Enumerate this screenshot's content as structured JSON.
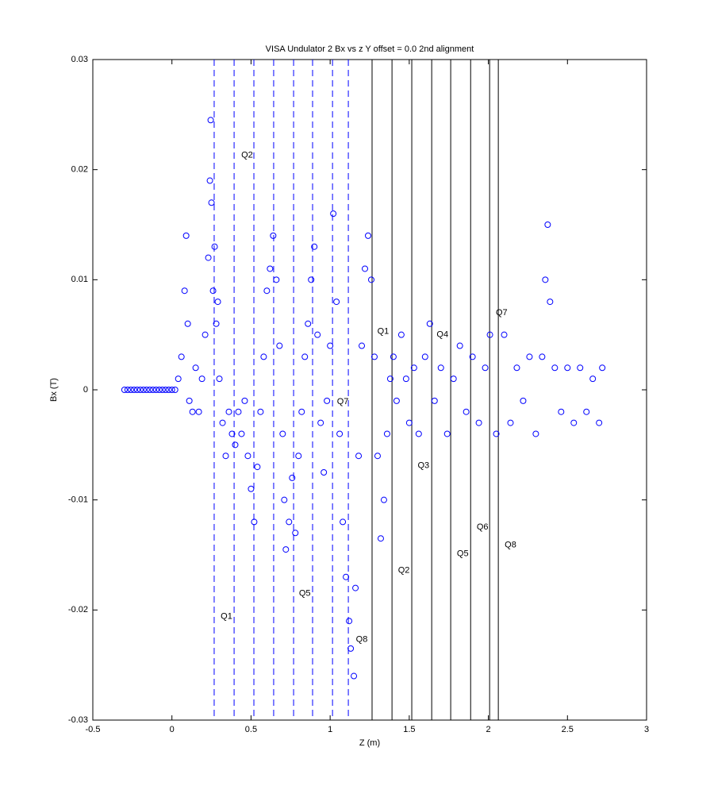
{
  "chart_data": {
    "type": "scatter",
    "title": "VISA Undulator 2 Bx vs z Y offset = 0.0 2nd alignment",
    "x_label": "Z (m)",
    "y_label": "Bx (T)",
    "xlim": [
      -0.5,
      3
    ],
    "ylim": [
      -0.03,
      0.03
    ],
    "xticks": [
      -0.5,
      0,
      0.5,
      1,
      1.5,
      2,
      2.5,
      3
    ],
    "yticks": [
      -0.03,
      -0.02,
      -0.01,
      0,
      0.01,
      0.02,
      0.03
    ],
    "color": "#0000ff",
    "marker": "open-circle",
    "x": [
      -0.3,
      -0.28,
      -0.26,
      -0.24,
      -0.22,
      -0.2,
      -0.18,
      -0.16,
      -0.14,
      -0.12,
      -0.1,
      -0.08,
      -0.06,
      -0.04,
      -0.02,
      0,
      0.02,
      0.04,
      0.06,
      0.08,
      0.09,
      0.1,
      0.11,
      0.13,
      0.15,
      0.17,
      0.19,
      0.21,
      0.23,
      0.24,
      0.245,
      0.25,
      0.26,
      0.27,
      0.28,
      0.29,
      0.3,
      0.32,
      0.34,
      0.36,
      0.38,
      0.4,
      0.42,
      0.44,
      0.46,
      0.48,
      0.5,
      0.52,
      0.54,
      0.56,
      0.58,
      0.6,
      0.62,
      0.64,
      0.66,
      0.68,
      0.7,
      0.71,
      0.72,
      0.74,
      0.76,
      0.78,
      0.8,
      0.82,
      0.84,
      0.86,
      0.88,
      0.9,
      0.92,
      0.94,
      0.96,
      0.98,
      1,
      1.02,
      1.04,
      1.06,
      1.08,
      1.1,
      1.12,
      1.13,
      1.15,
      1.16,
      1.18,
      1.2,
      1.22,
      1.24,
      1.26,
      1.28,
      1.3,
      1.32,
      1.34,
      1.36,
      1.38,
      1.4,
      1.42,
      1.45,
      1.48,
      1.5,
      1.53,
      1.56,
      1.6,
      1.63,
      1.66,
      1.7,
      1.74,
      1.78,
      1.82,
      1.86,
      1.9,
      1.94,
      1.98,
      2.01,
      2.05,
      2.1,
      2.14,
      2.18,
      2.22,
      2.26,
      2.3,
      2.34,
      2.36,
      2.375,
      2.39,
      2.42,
      2.46,
      2.5,
      2.54,
      2.58,
      2.62,
      2.66,
      2.7,
      2.72
    ],
    "values": [
      0,
      0,
      0,
      0,
      0,
      0,
      0,
      0,
      0,
      0,
      0,
      0,
      0,
      0,
      0,
      0,
      0,
      0.001,
      0.003,
      0.009,
      0.014,
      0.006,
      -0.001,
      -0.002,
      0.002,
      -0.002,
      0.001,
      0.005,
      0.012,
      0.019,
      0.0245,
      0.017,
      0.009,
      0.013,
      0.006,
      0.008,
      0.001,
      -0.003,
      -0.006,
      -0.002,
      -0.004,
      -0.005,
      -0.002,
      -0.004,
      -0.001,
      -0.006,
      -0.009,
      -0.012,
      -0.007,
      -0.002,
      0.003,
      0.009,
      0.011,
      0.014,
      0.01,
      0.004,
      -0.004,
      -0.01,
      -0.0145,
      -0.012,
      -0.008,
      -0.013,
      -0.006,
      -0.002,
      0.003,
      0.006,
      0.01,
      0.013,
      0.005,
      -0.003,
      -0.0075,
      -0.001,
      0.004,
      0.016,
      0.008,
      -0.004,
      -0.012,
      -0.017,
      -0.021,
      -0.0235,
      -0.026,
      -0.018,
      -0.006,
      0.004,
      0.011,
      0.014,
      0.01,
      0.003,
      -0.006,
      -0.0135,
      -0.01,
      -0.004,
      0.001,
      0.003,
      -0.001,
      0.005,
      0.001,
      -0.003,
      0.002,
      -0.004,
      0.003,
      0.006,
      -0.001,
      0.002,
      -0.004,
      0.001,
      0.004,
      -0.002,
      0.003,
      -0.003,
      0.002,
      0.005,
      -0.004,
      0.005,
      -0.003,
      0.002,
      -0.001,
      0.003,
      -0.004,
      0.003,
      0.01,
      0.015,
      0.008,
      0.002,
      -0.002,
      0.002,
      -0.003,
      0.002,
      -0.002,
      0.001,
      -0.003,
      0.002
    ],
    "reference_lines": [
      {
        "style": "dashed",
        "color": "#0000ff",
        "x": [
          0.267,
          0.393,
          0.518,
          0.643,
          0.769,
          0.889,
          1.015,
          1.115
        ]
      },
      {
        "style": "solid",
        "color": "#000000",
        "x": [
          1.265,
          1.391,
          1.516,
          1.642,
          1.762,
          1.888,
          2.008,
          2.063
        ]
      }
    ],
    "annotations": [
      {
        "text": "Q1",
        "x": 0.345,
        "y": -0.0206,
        "color": "#0000ff"
      },
      {
        "text": "Q2",
        "x": 0.475,
        "y": 0.0213,
        "color": "#0000ff"
      },
      {
        "text": "Q5",
        "x": 0.84,
        "y": -0.0185,
        "color": "#0000ff"
      },
      {
        "text": "Q7",
        "x": 1.08,
        "y": -0.0011,
        "color": "#0000ff"
      },
      {
        "text": "Q8",
        "x": 1.2,
        "y": -0.0227,
        "color": "#0000ff"
      },
      {
        "text": "Q1",
        "x": 1.335,
        "y": 0.0053,
        "color": "#000000"
      },
      {
        "text": "Q2",
        "x": 1.466,
        "y": -0.0164,
        "color": "#000000"
      },
      {
        "text": "Q3",
        "x": 1.59,
        "y": -0.0069,
        "color": "#000000"
      },
      {
        "text": "Q4",
        "x": 1.71,
        "y": 0.005,
        "color": "#000000"
      },
      {
        "text": "Q5",
        "x": 1.838,
        "y": -0.0149,
        "color": "#000000"
      },
      {
        "text": "Q6",
        "x": 1.963,
        "y": -0.0125,
        "color": "#000000"
      },
      {
        "text": "Q7",
        "x": 2.084,
        "y": 0.007,
        "color": "#000000"
      },
      {
        "text": "Q8",
        "x": 2.14,
        "y": -0.0141,
        "color": "#000000"
      }
    ]
  }
}
